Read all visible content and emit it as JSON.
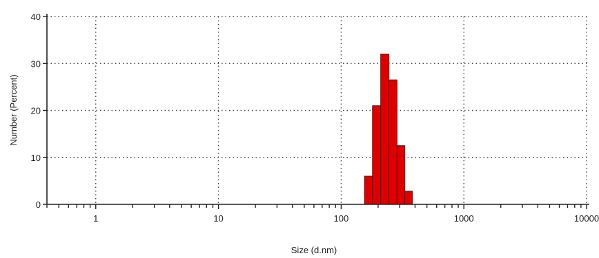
{
  "chart_data": {
    "type": "bar",
    "title": "",
    "xlabel": "Size (d.nm)",
    "ylabel": "Number (Percent)",
    "x_scale": "log",
    "xlim": [
      0.4,
      10000
    ],
    "ylim": [
      0,
      40
    ],
    "x_ticks": [
      {
        "value": 1,
        "label": "1"
      },
      {
        "value": 10,
        "label": "10"
      },
      {
        "value": 100,
        "label": "100"
      },
      {
        "value": 1000,
        "label": "1000"
      },
      {
        "value": 10000,
        "label": "10000"
      }
    ],
    "y_ticks": [
      {
        "value": 0,
        "label": "0"
      },
      {
        "value": 10,
        "label": "10"
      },
      {
        "value": 20,
        "label": "20"
      },
      {
        "value": 30,
        "label": "30"
      },
      {
        "value": 40,
        "label": "40"
      }
    ],
    "grid": true,
    "bar_color": "#dd0000",
    "bins": [
      {
        "from": 155,
        "to": 180,
        "value": 6
      },
      {
        "from": 180,
        "to": 210,
        "value": 21
      },
      {
        "from": 210,
        "to": 245,
        "value": 32
      },
      {
        "from": 245,
        "to": 285,
        "value": 26.5
      },
      {
        "from": 285,
        "to": 330,
        "value": 12.5
      },
      {
        "from": 330,
        "to": 380,
        "value": 2.8
      }
    ]
  }
}
